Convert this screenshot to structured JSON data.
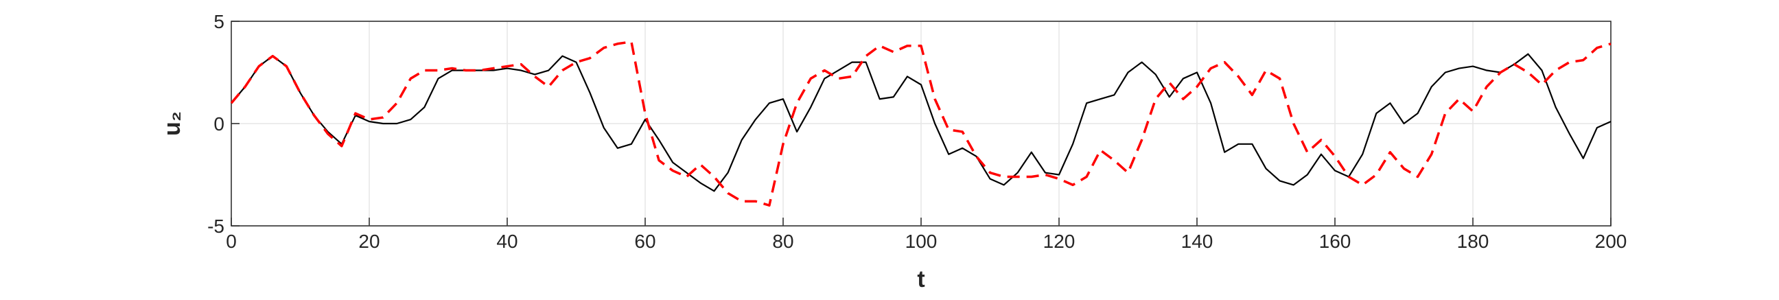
{
  "chart_data": {
    "type": "line",
    "x_label": "t",
    "y_label": "u₂",
    "x": [
      0,
      2,
      4,
      6,
      8,
      10,
      12,
      14,
      16,
      18,
      20,
      22,
      24,
      26,
      28,
      30,
      32,
      34,
      36,
      38,
      40,
      42,
      44,
      46,
      48,
      50,
      52,
      54,
      56,
      58,
      60,
      62,
      64,
      66,
      68,
      70,
      72,
      74,
      76,
      78,
      80,
      82,
      84,
      86,
      88,
      90,
      92,
      94,
      96,
      98,
      100,
      102,
      104,
      106,
      108,
      110,
      112,
      114,
      116,
      118,
      120,
      122,
      124,
      126,
      128,
      130,
      132,
      134,
      136,
      138,
      140,
      142,
      144,
      146,
      148,
      150,
      152,
      154,
      156,
      158,
      160,
      162,
      164,
      166,
      168,
      170,
      172,
      174,
      176,
      178,
      180,
      182,
      184,
      186,
      188,
      190,
      192,
      194,
      196,
      198,
      200
    ],
    "series": [
      {
        "color": "#000000",
        "dash": false,
        "values": [
          1.0,
          1.8,
          2.8,
          3.3,
          2.8,
          1.5,
          0.4,
          -0.4,
          -1.0,
          0.4,
          0.1,
          0,
          0,
          0.2,
          0.8,
          2.2,
          2.6,
          2.6,
          2.6,
          2.6,
          2.7,
          2.6,
          2.4,
          2.6,
          3.3,
          3.0,
          1.5,
          -0.2,
          -1.2,
          -1.0,
          0.2,
          -0.8,
          -1.9,
          -2.4,
          -2.9,
          -3.3,
          -2.4,
          -0.8,
          0.2,
          1.0,
          1.2,
          -0.4,
          0.8,
          2.2,
          2.6,
          3.0,
          3.0,
          1.2,
          1.3,
          2.3,
          1.9,
          0,
          -1.5,
          -1.2,
          -1.6,
          -2.7,
          -3.0,
          -2.4,
          -1.4,
          -2.4,
          -2.5,
          -1.0,
          1.0,
          1.2,
          1.4,
          2.5,
          3.0,
          2.4,
          1.3,
          2.2,
          2.5,
          1.0,
          -1.4,
          -1.0,
          -1.0,
          -2.2,
          -2.8,
          -3.0,
          -2.5,
          -1.5,
          -2.3,
          -2.6,
          -1.5,
          0.5,
          1.0,
          0,
          0.5,
          1.8,
          2.5,
          2.7,
          2.8,
          2.6,
          2.5,
          2.9,
          3.4,
          2.6,
          0.8,
          -0.5,
          -1.7,
          -0.2,
          0.1
        ]
      },
      {
        "color": "#ff0000",
        "dash": true,
        "values": [
          1.0,
          1.8,
          2.8,
          3.3,
          2.8,
          1.5,
          0.4,
          -0.5,
          -1.1,
          0.5,
          0.2,
          0.3,
          1.0,
          2.2,
          2.6,
          2.6,
          2.7,
          2.6,
          2.6,
          2.7,
          2.8,
          2.9,
          2.3,
          1.8,
          2.6,
          3.0,
          3.2,
          3.7,
          3.9,
          4.0,
          0.5,
          -1.8,
          -2.3,
          -2.6,
          -2.0,
          -2.6,
          -3.4,
          -3.8,
          -3.8,
          -4.0,
          -1.0,
          1.0,
          2.2,
          2.6,
          2.2,
          2.3,
          3.3,
          3.8,
          3.5,
          3.8,
          3.8,
          1.2,
          -0.3,
          -0.4,
          -1.6,
          -2.4,
          -2.6,
          -2.6,
          -2.6,
          -2.5,
          -2.7,
          -3.0,
          -2.6,
          -1.3,
          -1.8,
          -2.4,
          -0.8,
          1.2,
          2.0,
          1.2,
          1.8,
          2.7,
          3.0,
          2.3,
          1.4,
          2.6,
          2.2,
          0,
          -1.4,
          -0.8,
          -1.6,
          -2.6,
          -3.0,
          -2.5,
          -1.4,
          -2.2,
          -2.6,
          -1.5,
          0.5,
          1.2,
          0.6,
          1.8,
          2.5,
          2.9,
          2.5,
          1.9,
          2.6,
          3.0,
          3.1,
          3.7,
          3.9
        ]
      }
    ],
    "xlim": [
      0,
      200
    ],
    "xticks": [
      0,
      20,
      40,
      60,
      80,
      100,
      120,
      140,
      160,
      180,
      200
    ],
    "ylim": [
      -5,
      5
    ],
    "yticks": [
      -5,
      0,
      5
    ],
    "grid": true
  }
}
